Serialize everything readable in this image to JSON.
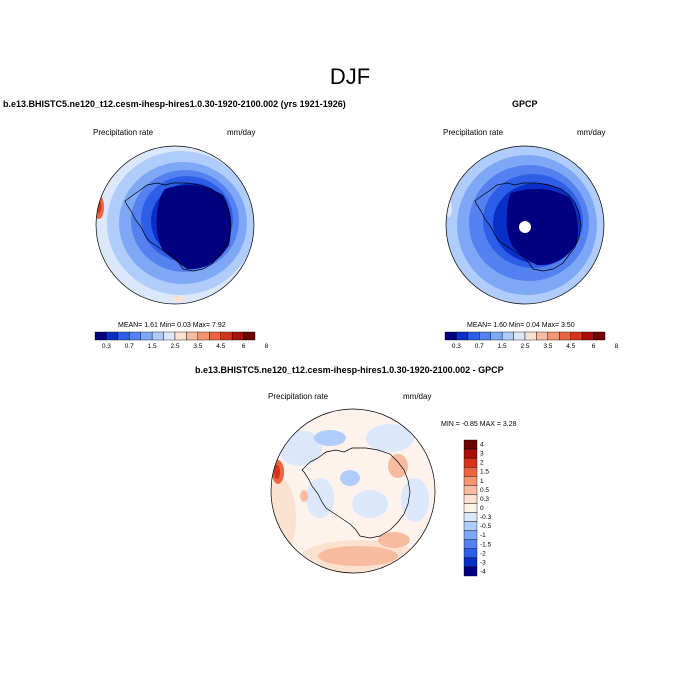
{
  "figure_title": "DJF",
  "chart_data": [
    {
      "type": "heatmap",
      "projection": "south polar stereographic",
      "title": "b.e13.BHISTC5.ne120_t12.cesm-ihesp-hires1.0.30-1920-2100.002 (yrs 1921-1926)",
      "left_label": "Precipitation rate",
      "right_label": "mm/day",
      "stats": {
        "mean_label": "MEAN=",
        "mean": "1.61",
        "min_label": "Min=",
        "min": "0.03",
        "max_label": "Max=",
        "max": "7.92"
      },
      "colorbar_levels": [
        "0.3",
        "0.7",
        "1.5",
        "2.5",
        "3.5",
        "4.5",
        "6",
        "8"
      ],
      "colorbar_colors": [
        "#000080",
        "#0a2fc8",
        "#2c5ee8",
        "#5580f0",
        "#7ea8f5",
        "#b0ccfa",
        "#dbe8fc",
        "#fbe1cf",
        "#f7bba0",
        "#f3956f",
        "#ea6640",
        "#d6341a",
        "#a81005",
        "#6f0000"
      ]
    },
    {
      "type": "heatmap",
      "projection": "south polar stereographic",
      "title": "GPCP",
      "left_label": "Precipitation rate",
      "right_label": "mm/day",
      "stats": {
        "mean_label": "MEAN=",
        "mean": "1.60",
        "min_label": "Min=",
        "min": "0.04",
        "max_label": "Max=",
        "max": "3.50"
      },
      "colorbar_levels": [
        "0.3",
        "0.7",
        "1.5",
        "2.5",
        "3.5",
        "4.5",
        "6",
        "8"
      ],
      "colorbar_colors": [
        "#000080",
        "#0a2fc8",
        "#2c5ee8",
        "#5580f0",
        "#7ea8f5",
        "#b0ccfa",
        "#dbe8fc",
        "#fbe1cf",
        "#f7bba0",
        "#f3956f",
        "#ea6640",
        "#d6341a",
        "#a81005",
        "#6f0000"
      ]
    },
    {
      "type": "heatmap",
      "projection": "south polar stereographic",
      "title": "b.e13.BHISTC5.ne120_t12.cesm-ihesp-hires1.0.30-1920-2100.002 - GPCP",
      "left_label": "Precipitation rate",
      "right_label": "mm/day",
      "stats": {
        "min_label": "MIN =",
        "min": "-0.85",
        "max_label": "MAX =",
        "max": "3.28"
      },
      "colorbar_levels": [
        "4",
        "3",
        "2",
        "1.5",
        "1",
        "0.5",
        "0.3",
        "0",
        "-0.3",
        "-0.5",
        "-1",
        "-1.5",
        "-2",
        "-3",
        "-4"
      ],
      "colorbar_colors": [
        "#6f0000",
        "#a81005",
        "#d6341a",
        "#ea6640",
        "#f3956f",
        "#f7bba0",
        "#fbe1cf",
        "#fdf3ec",
        "#dbe8fc",
        "#b0ccfa",
        "#7ea8f5",
        "#5580f0",
        "#2c5ee8",
        "#0a2fc8",
        "#000080"
      ]
    }
  ]
}
